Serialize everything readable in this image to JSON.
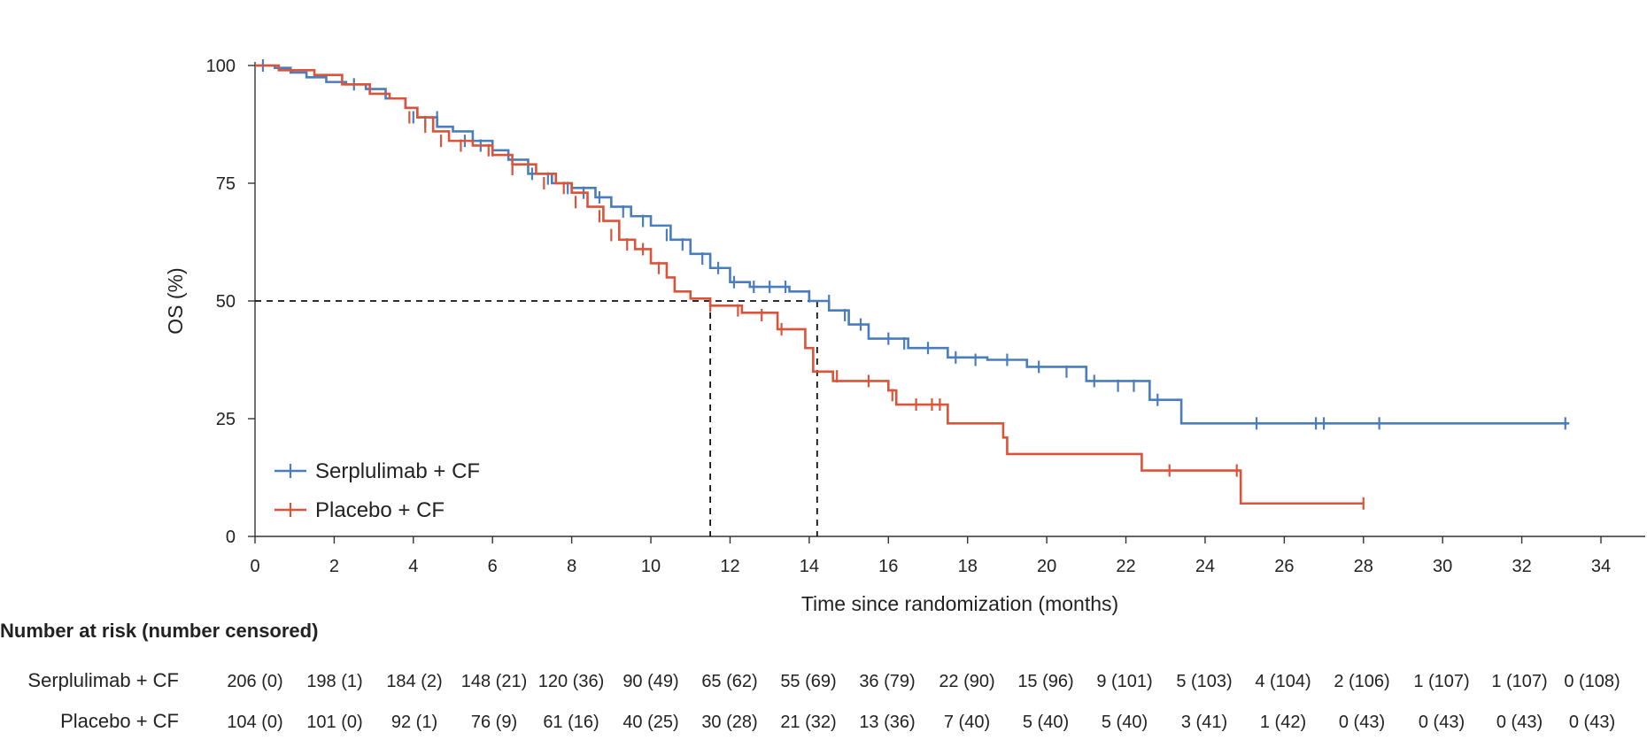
{
  "chart_data": {
    "type": "line",
    "subtype": "kaplan-meier",
    "xlabel": "Time since randomization (months)",
    "ylabel": "OS (%)",
    "xlim": [
      0,
      34
    ],
    "ylim": [
      0,
      100
    ],
    "xticks": [
      0,
      2,
      4,
      6,
      8,
      10,
      12,
      14,
      16,
      18,
      20,
      22,
      24,
      26,
      28,
      30,
      32,
      34
    ],
    "yticks": [
      0,
      25,
      50,
      75,
      100
    ],
    "colors": {
      "serplulimab": "#4a7dbd",
      "placebo": "#d9543a"
    },
    "series": [
      {
        "name": "Serplulimab + CF",
        "color": "#4a7dbd",
        "steps": [
          [
            0,
            100
          ],
          [
            0.5,
            99.5
          ],
          [
            0.9,
            98.5
          ],
          [
            1.3,
            97.5
          ],
          [
            1.8,
            96.5
          ],
          [
            2.3,
            96
          ],
          [
            2.8,
            95
          ],
          [
            3.3,
            93
          ],
          [
            3.8,
            91
          ],
          [
            4.1,
            89
          ],
          [
            4.6,
            87
          ],
          [
            5.0,
            86
          ],
          [
            5.5,
            84
          ],
          [
            6.0,
            82
          ],
          [
            6.4,
            80
          ],
          [
            6.9,
            77
          ],
          [
            7.5,
            75
          ],
          [
            8.0,
            74
          ],
          [
            8.6,
            72
          ],
          [
            9.0,
            70
          ],
          [
            9.5,
            68
          ],
          [
            10.0,
            66
          ],
          [
            10.5,
            63
          ],
          [
            11.0,
            60
          ],
          [
            11.5,
            57
          ],
          [
            12.0,
            54
          ],
          [
            12.5,
            53
          ],
          [
            13.5,
            52
          ],
          [
            14.0,
            50
          ],
          [
            14.5,
            48
          ],
          [
            15.0,
            45
          ],
          [
            15.5,
            42
          ],
          [
            16.5,
            40
          ],
          [
            17.5,
            38
          ],
          [
            18.5,
            37.5
          ],
          [
            19.5,
            36
          ],
          [
            21.0,
            33
          ],
          [
            22.6,
            29
          ],
          [
            23.4,
            24
          ],
          [
            33.2,
            24
          ]
        ],
        "censored": [
          [
            0.2,
            100
          ],
          [
            2.5,
            96
          ],
          [
            4.0,
            89
          ],
          [
            4.3,
            88
          ],
          [
            4.6,
            89
          ],
          [
            5.3,
            84
          ],
          [
            5.7,
            83
          ],
          [
            6.0,
            82
          ],
          [
            6.5,
            78
          ],
          [
            7.0,
            77
          ],
          [
            7.4,
            76
          ],
          [
            7.9,
            74
          ],
          [
            8.3,
            73
          ],
          [
            8.7,
            72
          ],
          [
            9.3,
            69
          ],
          [
            9.8,
            67
          ],
          [
            10.4,
            64
          ],
          [
            10.8,
            62
          ],
          [
            11.3,
            59
          ],
          [
            11.7,
            57
          ],
          [
            12.1,
            54
          ],
          [
            12.6,
            53
          ],
          [
            13.0,
            53
          ],
          [
            13.4,
            53
          ],
          [
            14.0,
            51
          ],
          [
            14.5,
            50
          ],
          [
            14.9,
            47
          ],
          [
            15.3,
            45
          ],
          [
            16.0,
            42
          ],
          [
            16.4,
            41
          ],
          [
            17.0,
            40
          ],
          [
            17.7,
            38
          ],
          [
            18.2,
            37.5
          ],
          [
            19.0,
            37.5
          ],
          [
            19.8,
            36
          ],
          [
            20.5,
            35
          ],
          [
            21.2,
            33
          ],
          [
            21.8,
            32
          ],
          [
            22.2,
            32
          ],
          [
            22.8,
            29
          ],
          [
            25.3,
            24
          ],
          [
            26.8,
            24
          ],
          [
            27.0,
            24
          ],
          [
            28.4,
            24
          ],
          [
            33.1,
            24
          ]
        ]
      },
      {
        "name": "Placebo + CF",
        "color": "#d9543a",
        "steps": [
          [
            0,
            100
          ],
          [
            0.6,
            99
          ],
          [
            1.5,
            98
          ],
          [
            2.2,
            96
          ],
          [
            2.9,
            94
          ],
          [
            3.4,
            93
          ],
          [
            3.8,
            91
          ],
          [
            4.1,
            89
          ],
          [
            4.5,
            86
          ],
          [
            4.9,
            84
          ],
          [
            5.5,
            83
          ],
          [
            6.0,
            81
          ],
          [
            6.5,
            79
          ],
          [
            7.1,
            77
          ],
          [
            7.6,
            75
          ],
          [
            8.0,
            73
          ],
          [
            8.4,
            70
          ],
          [
            8.8,
            67
          ],
          [
            9.2,
            63
          ],
          [
            9.6,
            61
          ],
          [
            10.0,
            58
          ],
          [
            10.4,
            55
          ],
          [
            10.6,
            52
          ],
          [
            11.0,
            50.5
          ],
          [
            11.5,
            49
          ],
          [
            12.3,
            47.5
          ],
          [
            13.2,
            44
          ],
          [
            13.9,
            40
          ],
          [
            14.1,
            35
          ],
          [
            14.6,
            33
          ],
          [
            16.0,
            31
          ],
          [
            16.2,
            28
          ],
          [
            17.5,
            24
          ],
          [
            18.9,
            21
          ],
          [
            19.0,
            17.5
          ],
          [
            22.4,
            14
          ],
          [
            24.9,
            7
          ],
          [
            28.0,
            7
          ]
        ],
        "censored": [
          [
            3.9,
            89
          ],
          [
            4.3,
            87
          ],
          [
            4.7,
            84
          ],
          [
            5.2,
            83
          ],
          [
            5.9,
            82
          ],
          [
            6.5,
            78
          ],
          [
            7.3,
            75
          ],
          [
            7.8,
            74
          ],
          [
            8.1,
            71
          ],
          [
            8.7,
            68
          ],
          [
            9.0,
            64
          ],
          [
            9.4,
            62
          ],
          [
            9.8,
            61
          ],
          [
            10.2,
            57
          ],
          [
            11.5,
            49
          ],
          [
            12.2,
            48
          ],
          [
            12.8,
            47
          ],
          [
            13.3,
            44
          ],
          [
            14.7,
            34
          ],
          [
            15.5,
            33
          ],
          [
            16.1,
            30
          ],
          [
            16.7,
            28
          ],
          [
            17.1,
            28
          ],
          [
            17.3,
            28
          ],
          [
            23.1,
            14
          ],
          [
            24.8,
            14
          ],
          [
            28.0,
            7
          ]
        ]
      }
    ],
    "reference_lines": {
      "y": 50,
      "medians": [
        {
          "series": "Placebo + CF",
          "x": 11.5
        },
        {
          "series": "Serplulimab + CF",
          "x": 14.2
        }
      ]
    },
    "legend": {
      "position": "bottom-left",
      "items": [
        "Serplulimab + CF",
        "Placebo + CF"
      ]
    },
    "risk_table": {
      "title": "Number at risk (number censored)",
      "rows": [
        {
          "label": "Serplulimab + CF",
          "values": [
            "206 (0)",
            "198 (1)",
            "184 (2)",
            "148 (21)",
            "120 (36)",
            "90 (49)",
            "65 (62)",
            "55 (69)",
            "36 (79)",
            "22 (90)",
            "15 (96)",
            "9 (101)",
            "5 (103)",
            "4 (104)",
            "2 (106)",
            "1 (107)",
            "1 (107)",
            "0 (108)"
          ]
        },
        {
          "label": "Placebo + CF",
          "values": [
            "104 (0)",
            "101 (0)",
            "92 (1)",
            "76 (9)",
            "61 (16)",
            "40 (25)",
            "30 (28)",
            "21 (32)",
            "13 (36)",
            "7 (40)",
            "5 (40)",
            "5 (40)",
            "3 (41)",
            "1 (42)",
            "0 (43)",
            "0 (43)",
            "0 (43)",
            "0 (43)"
          ]
        }
      ]
    }
  }
}
